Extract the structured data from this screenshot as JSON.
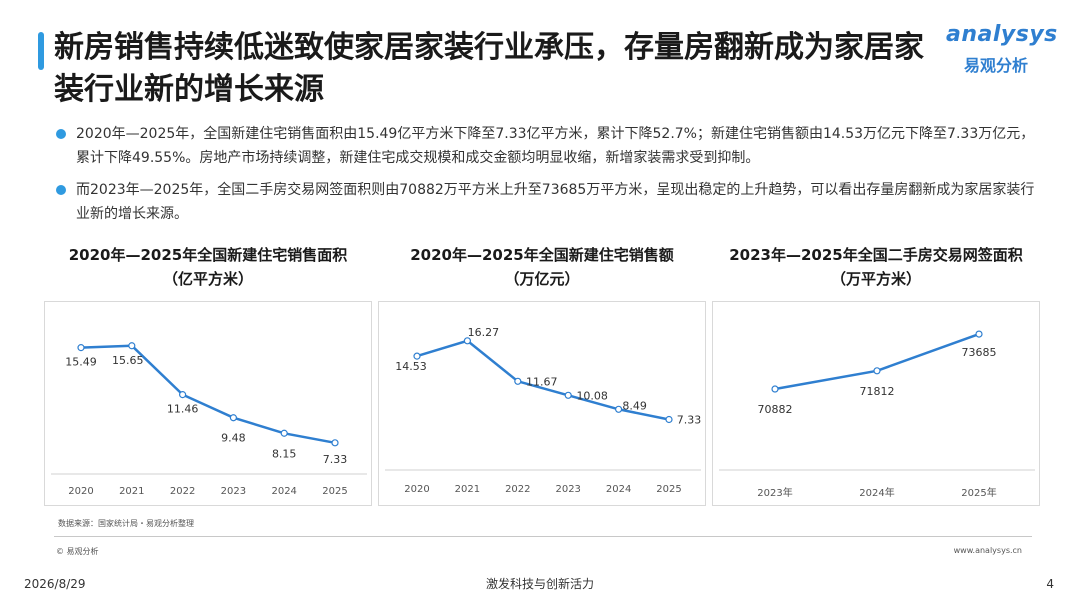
{
  "header": {
    "title": "新房销售持续低迷致使家居家装行业承压，存量房翻新成为家居家装行业新的增长来源",
    "logo_text": "analysys",
    "logo_cn": "易观分析"
  },
  "bullets": [
    "2020年—2025年，全国新建住宅销售面积由15.49亿平方米下降至7.33亿平方米，累计下降52.7%；新建住宅销售额由14.53万亿元下降至7.33万亿元，累计下降49.55%。房地产市场持续调整，新建住宅成交规模和成交金额均明显收缩，新增家装需求受到抑制。",
    "而2023年—2025年，全国二手房交易网签面积则由70882万平方米上升至73685万平方米，呈现出稳定的上升趋势，可以看出存量房翻新成为家居家装行业新的增长来源。"
  ],
  "chart_data": [
    {
      "type": "line",
      "title": "2020年—2025年全国新建住宅销售面积",
      "subtitle": "（亿平方米）",
      "categories": [
        "2020",
        "2021",
        "2022",
        "2023",
        "2024",
        "2025"
      ],
      "values": [
        15.49,
        15.65,
        11.46,
        9.48,
        8.15,
        7.33
      ],
      "labels": [
        "15.49",
        "15.65",
        "11.46",
        "9.48",
        "8.15",
        "7.33"
      ],
      "ylim": [
        5,
        17
      ],
      "color": "#2f7fd0"
    },
    {
      "type": "line",
      "title": "2020年—2025年全国新建住宅销售额",
      "subtitle": "（万亿元）",
      "categories": [
        "2020",
        "2021",
        "2022",
        "2023",
        "2024",
        "2025"
      ],
      "values": [
        14.53,
        16.27,
        11.67,
        10.08,
        8.49,
        7.33
      ],
      "labels": [
        "14.53",
        "16.27",
        "11.67",
        "10.08",
        "8.49",
        "7.33"
      ],
      "ylim": [
        5,
        17.5
      ],
      "color": "#2f7fd0"
    },
    {
      "type": "line",
      "title": "2023年—2025年全国二手房交易网签面积",
      "subtitle": "（万平方米）",
      "categories": [
        "2023年",
        "2024年",
        "2025年"
      ],
      "values": [
        70882,
        71812,
        73685
      ],
      "labels": [
        "70882",
        "71812",
        "73685"
      ],
      "ylim": [
        69200,
        74200
      ],
      "color": "#2f7fd0"
    }
  ],
  "footer": {
    "source": "数据来源：国家统计局・易观分析整理",
    "copyright": "© 易观分析",
    "website": "www.analysys.cn",
    "date": "2026/8/29",
    "slogan": "激发科技与创新活力",
    "page": "4"
  }
}
